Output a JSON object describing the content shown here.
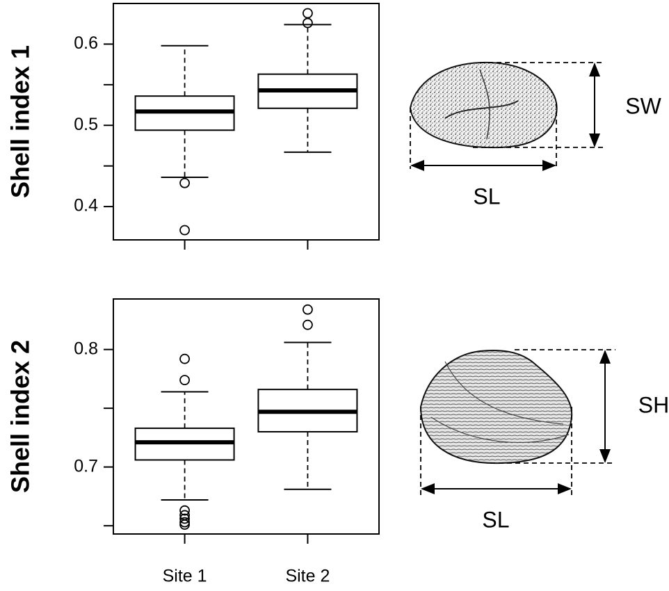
{
  "chart_data": [
    {
      "type": "box",
      "ylabel": "Shell index 1",
      "categories": [
        null,
        null
      ],
      "ylim": [
        0.359,
        0.65
      ],
      "yticks": [
        0.4,
        0.5,
        0.6
      ],
      "minor_yticks": [
        0.45,
        0.55
      ],
      "boxes": [
        {
          "whisker_low": 0.436,
          "q1": 0.494,
          "median": 0.517,
          "q3": 0.536,
          "whisker_high": 0.598,
          "outliers": [
            0.429,
            0.371
          ]
        },
        {
          "whisker_low": 0.467,
          "q1": 0.521,
          "median": 0.543,
          "q3": 0.563,
          "whisker_high": 0.624,
          "outliers": [
            0.638,
            0.626
          ]
        }
      ],
      "annotations": [
        "SW",
        "SL"
      ]
    },
    {
      "type": "box",
      "ylabel": "Shell index 2",
      "categories": [
        "Site 1",
        "Site 2"
      ],
      "ylim": [
        0.643,
        0.843
      ],
      "yticks": [
        0.7,
        0.8
      ],
      "minor_yticks": [
        0.65,
        0.75
      ],
      "boxes": [
        {
          "whisker_low": 0.672,
          "q1": 0.706,
          "median": 0.721,
          "q3": 0.733,
          "whisker_high": 0.764,
          "outliers": [
            0.792,
            0.774,
            0.663,
            0.659,
            0.656,
            0.653,
            0.651
          ]
        },
        {
          "whisker_low": 0.681,
          "q1": 0.73,
          "median": 0.747,
          "q3": 0.766,
          "whisker_high": 0.806,
          "outliers": [
            0.834,
            0.821
          ]
        }
      ],
      "annotations": [
        "SH",
        "SL"
      ]
    }
  ]
}
